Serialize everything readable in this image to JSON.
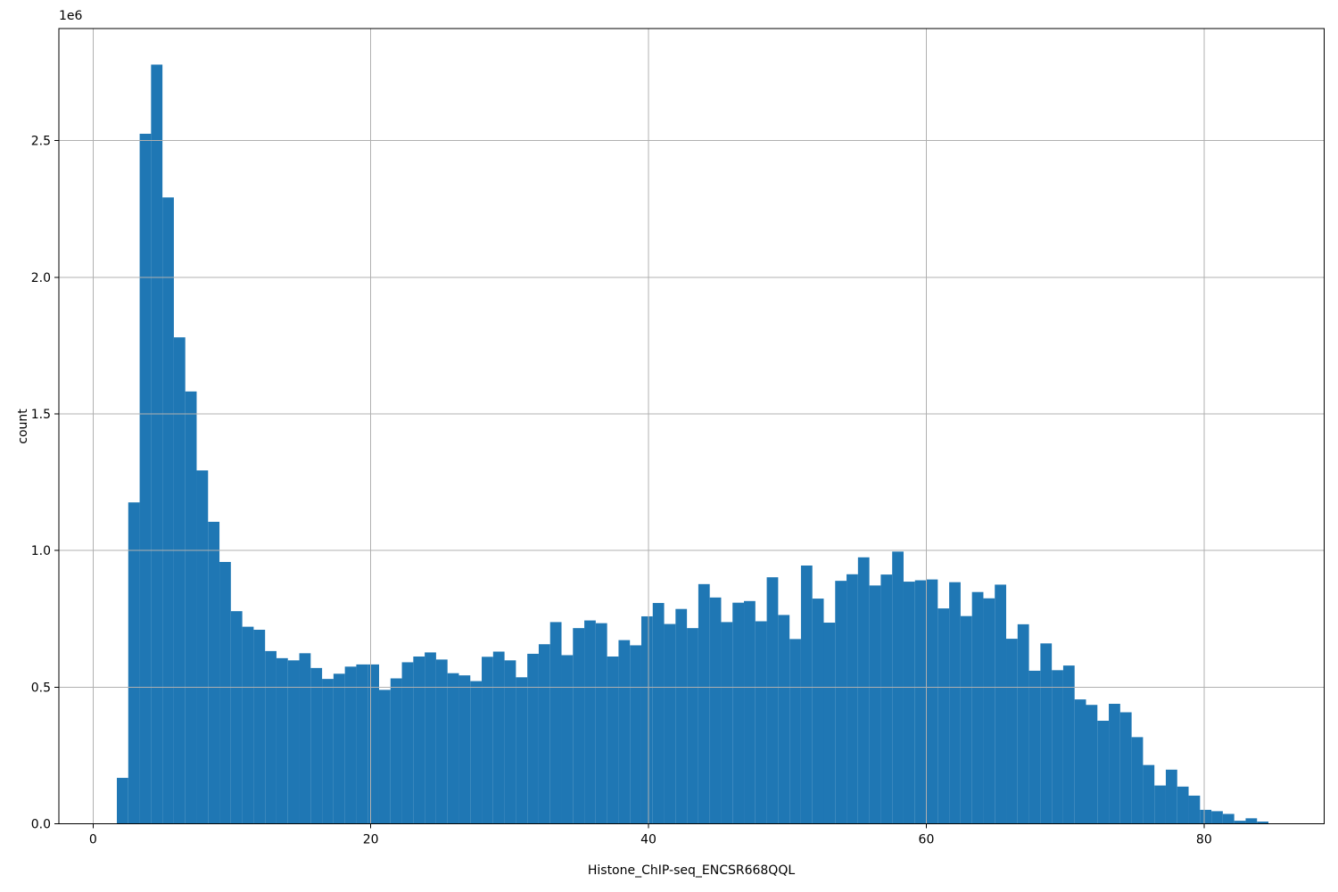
{
  "figure": {
    "background": "#ffffff",
    "plot_background": "#ffffff"
  },
  "chart_data": {
    "type": "bar",
    "subtype": "histogram",
    "title": "",
    "xlabel": "Histone_ChIP-seq_ENCSR668QQL",
    "ylabel": "count",
    "y_offset_label": "1e6",
    "bar_color": "#1f77b4",
    "grid": true,
    "grid_color": "#b0b0b0",
    "spine_color": "#000000",
    "tick_color": "#000000",
    "legend_position": "none",
    "xlim": [
      -2.46,
      88.65
    ],
    "ylim": [
      0,
      2910000
    ],
    "x_ticks": [
      0,
      20,
      40,
      60,
      80
    ],
    "x_tick_labels": [
      "0",
      "20",
      "40",
      "60",
      "80"
    ],
    "y_ticks": [
      0,
      500000,
      1000000,
      1500000,
      2000000,
      2500000
    ],
    "y_tick_labels": [
      "0.0",
      "0.5",
      "1.0",
      "1.5",
      "2.0",
      "2.5"
    ],
    "bin_start": 1.715,
    "bin_width": 0.821,
    "values": [
      168000,
      1176000,
      2525000,
      2778000,
      2292000,
      1780000,
      1582000,
      1293000,
      1105000,
      958000,
      778000,
      721000,
      710000,
      632000,
      606000,
      598000,
      624000,
      570000,
      530000,
      549000,
      575000,
      583000,
      583000,
      490000,
      532000,
      591000,
      612000,
      627000,
      601000,
      551000,
      543000,
      522000,
      611000,
      630000,
      598000,
      536000,
      622000,
      657000,
      738000,
      617000,
      716000,
      744000,
      734000,
      612000,
      672000,
      653000,
      759000,
      808000,
      731000,
      786000,
      716000,
      877000,
      828000,
      738000,
      809000,
      815000,
      741000,
      902000,
      764000,
      676000,
      945000,
      824000,
      736000,
      889000,
      913000,
      975000,
      872000,
      912000,
      996000,
      886000,
      891000,
      894000,
      788000,
      884000,
      760000,
      848000,
      825000,
      875000,
      677000,
      730000,
      560000,
      660000,
      562000,
      579000,
      455000,
      435000,
      377000,
      439000,
      408000,
      317000,
      215000,
      140000,
      198000,
      136000,
      103000,
      51000,
      46000,
      36000,
      11000,
      20000,
      8000
    ]
  }
}
